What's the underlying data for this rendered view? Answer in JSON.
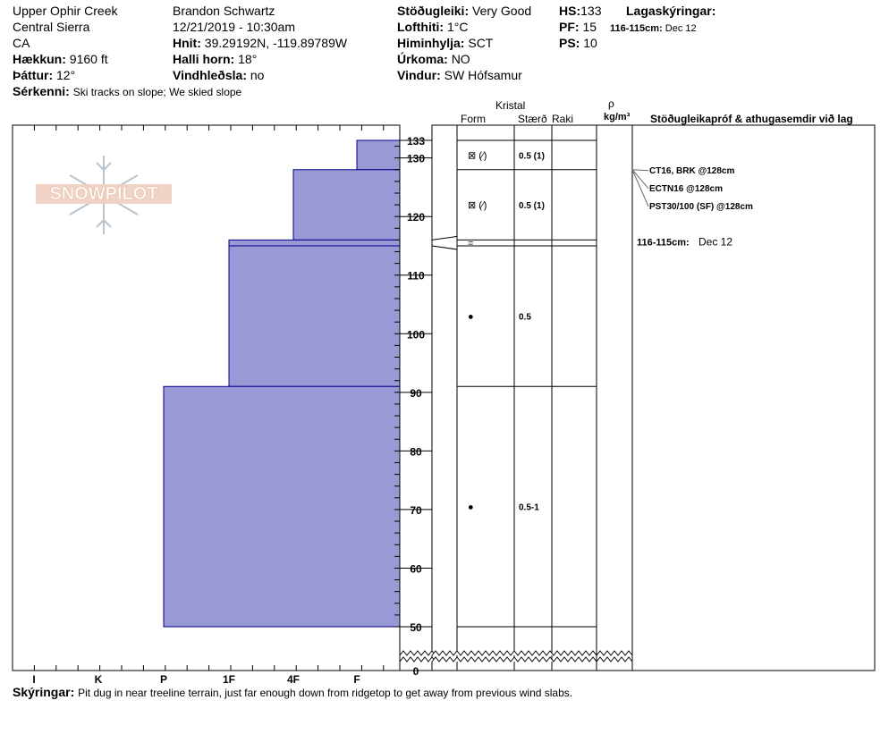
{
  "header": {
    "location": "Upper Ophir Creek",
    "region": "Central Sierra",
    "state": "CA",
    "elevation_label": "Hækkun:",
    "elevation": "9160 ft",
    "aspect_label": "Þáttur:",
    "aspect": "12°",
    "features_label": "Sérkenni:",
    "features": "Ski tracks on slope; We skied slope",
    "observer": "Brandon Schwartz",
    "datetime": "12/21/2019 - 10:30am",
    "coords_label": "Hnit:",
    "coords": "39.29192N, -119.89789W",
    "slope_label": "Halli horn:",
    "slope": "18°",
    "wind_loading_label": "Vindhleðsla:",
    "wind_loading": "no",
    "stability_label": "Stöðugleiki:",
    "stability": "Very Good",
    "air_temp_label": "Lofthiti:",
    "air_temp": "1°C",
    "sky_label": "Himinhylja:",
    "sky": "SCT",
    "precip_label": "Úrkoma:",
    "precip": "NO",
    "wind_label": "Vindur:",
    "wind": "SW Hófsamur",
    "hs_label": "HS:",
    "hs": "133",
    "pf_label": "PF:",
    "pf": "15",
    "ps_label": "PS:",
    "ps": "10",
    "layers_label": "Lagaskýringar:",
    "layer_note_depth": "116-115cm:",
    "layer_note_text": "Dec 12"
  },
  "logo_text": "SNOWPILOT",
  "columns": {
    "crystal": "Kristal",
    "form": "Form",
    "size": "Stærð",
    "moisture": "Raki",
    "rho": "ρ",
    "density_unit": "kg/m³",
    "tests_header": "Stöðugleikapróf & athugasemdir við lag"
  },
  "footer": {
    "label": "Skýringar:",
    "text": "Pit dug in near treeline terrain, just far enough down from ridgetop to get away from previous wind slabs."
  },
  "colors": {
    "layer_fill": "#9999d6",
    "layer_stroke": "#00008b"
  },
  "chart_data": {
    "type": "bar",
    "title": "",
    "hardness_scale": [
      "I",
      "K",
      "P",
      "1F",
      "4F",
      "F"
    ],
    "y_ticks": [
      0,
      50,
      60,
      70,
      80,
      90,
      100,
      110,
      120,
      130,
      133
    ],
    "ylim": [
      0,
      133
    ],
    "layers": [
      {
        "top": 133,
        "bottom": 128,
        "hardness": "F"
      },
      {
        "top": 128,
        "bottom": 116,
        "hardness": "4F"
      },
      {
        "top": 116,
        "bottom": 115,
        "hardness": "1F"
      },
      {
        "top": 115,
        "bottom": 91,
        "hardness": "1F"
      },
      {
        "top": 91,
        "bottom": 50,
        "hardness": "P"
      }
    ],
    "crystal_rows": [
      {
        "top": 133,
        "bottom": 128,
        "form": "⊠ (⁄)",
        "size": "0.5 (1)"
      },
      {
        "top": 128,
        "bottom": 116,
        "form": "⊠ (⁄)",
        "size": "0.5 (1)"
      },
      {
        "top": 116,
        "bottom": 115,
        "form": "=",
        "size": ""
      },
      {
        "top": 115,
        "bottom": 91,
        "form": "●",
        "size": "0.5"
      },
      {
        "top": 91,
        "bottom": 50,
        "form": "●",
        "size": "0.5-1"
      }
    ],
    "tests": [
      {
        "depth": 128,
        "text": "CT16, BRK @128cm"
      },
      {
        "depth": 128,
        "text": "ECTN16 @128cm"
      },
      {
        "depth": 128,
        "text": "PST30/100 (SF) @128cm"
      }
    ],
    "layer_comments": [
      {
        "depth": 115.5,
        "label": "116-115cm:",
        "text": "Dec 12"
      }
    ]
  }
}
